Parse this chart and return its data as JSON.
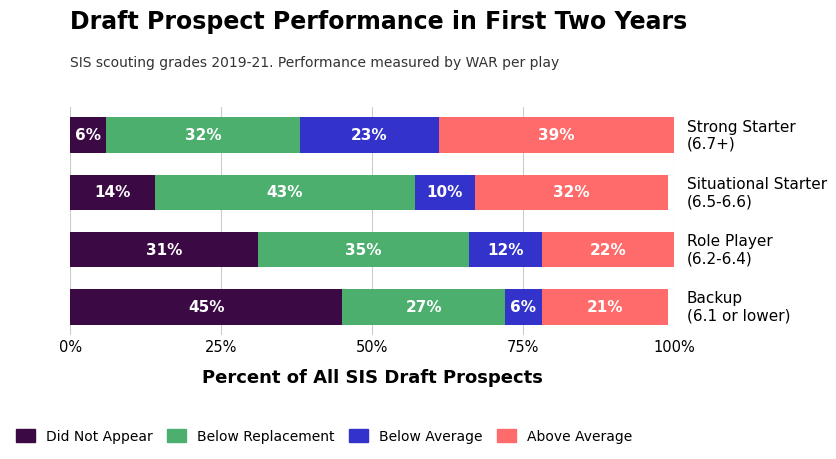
{
  "title": "Draft Prospect Performance in First Two Years",
  "subtitle": "SIS scouting grades 2019-21. Performance measured by WAR per play",
  "xlabel": "Percent of All SIS Draft Prospects",
  "categories": [
    "Strong Starter\n(6.7+)",
    "Situational Starter\n(6.5-6.6)",
    "Role Player\n(6.2-6.4)",
    "Backup\n(6.1 or lower)"
  ],
  "series": {
    "Did Not Appear": [
      6,
      14,
      31,
      45
    ],
    "Below Replacement": [
      32,
      43,
      35,
      27
    ],
    "Below Average": [
      23,
      10,
      12,
      6
    ],
    "Above Average": [
      39,
      32,
      22,
      21
    ]
  },
  "colors": {
    "Did Not Appear": "#3b0a45",
    "Below Replacement": "#4caf6e",
    "Below Average": "#3333cc",
    "Above Average": "#ff6b6b"
  },
  "legend_order": [
    "Did Not Appear",
    "Below Replacement",
    "Below Average",
    "Above Average"
  ],
  "background_color": "#ffffff",
  "bar_height": 0.62,
  "xlim": [
    0,
    100
  ],
  "xticks": [
    0,
    25,
    50,
    75,
    100
  ],
  "xticklabels": [
    "0%",
    "25%",
    "50%",
    "75%",
    "100%"
  ]
}
